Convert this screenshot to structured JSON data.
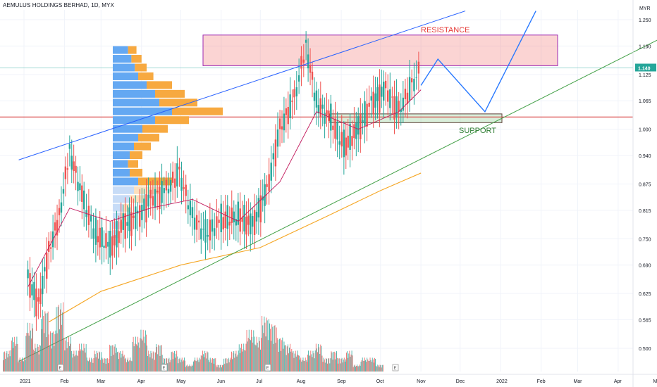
{
  "header": {
    "title": "AEMULUS HOLDINGS BERHAD, 1D, MYX"
  },
  "price_axis": {
    "currency": "MYR",
    "ticks": [
      "1.250",
      "1.190",
      "1.125",
      "1.065",
      "1.000",
      "0.940",
      "0.875",
      "0.815",
      "0.750",
      "0.690",
      "0.625",
      "0.565",
      "0.500"
    ],
    "last_price": "1.140",
    "last_price_color": "#26a69a"
  },
  "time_axis": {
    "ticks": [
      "2021",
      "Feb",
      "Mar",
      "Apr",
      "May",
      "Jun",
      "Jul",
      "Aug",
      "Sep",
      "Oct",
      "Nov",
      "Dec",
      "2022",
      "Feb",
      "Mar",
      "Apr",
      "May"
    ]
  },
  "annotations": {
    "resistance_label": "RESISTANCE",
    "support_label": "SUPPORT",
    "resistance_zone": [
      1.145,
      1.215
    ],
    "support_zone": [
      1.015,
      1.035
    ],
    "horizontal_line": 1.028,
    "resistance_color": "#e53935",
    "support_color": "#2e7d32",
    "earnings_marker": "E"
  },
  "chart_data": {
    "type": "candlestick",
    "symbol": "AEMULUS HOLDINGS BERHAD",
    "interval": "1D",
    "exchange": "MYX",
    "ylim": [
      0.44,
      1.27
    ],
    "price_path": [
      {
        "x": "2021-01-04",
        "y": 0.66
      },
      {
        "x": "2021-01-12",
        "y": 0.6
      },
      {
        "x": "2021-01-20",
        "y": 0.72
      },
      {
        "x": "2021-01-28",
        "y": 0.8
      },
      {
        "x": "2021-02-05",
        "y": 0.95
      },
      {
        "x": "2021-02-16",
        "y": 0.83
      },
      {
        "x": "2021-02-25",
        "y": 0.76
      },
      {
        "x": "2021-03-08",
        "y": 0.73
      },
      {
        "x": "2021-03-18",
        "y": 0.78
      },
      {
        "x": "2021-03-29",
        "y": 0.8
      },
      {
        "x": "2021-04-08",
        "y": 0.84
      },
      {
        "x": "2021-04-20",
        "y": 0.86
      },
      {
        "x": "2021-04-30",
        "y": 0.9
      },
      {
        "x": "2021-05-10",
        "y": 0.8
      },
      {
        "x": "2021-05-20",
        "y": 0.76
      },
      {
        "x": "2021-06-01",
        "y": 0.79
      },
      {
        "x": "2021-06-14",
        "y": 0.8
      },
      {
        "x": "2021-06-25",
        "y": 0.78
      },
      {
        "x": "2021-07-06",
        "y": 0.86
      },
      {
        "x": "2021-07-16",
        "y": 1.0
      },
      {
        "x": "2021-07-27",
        "y": 1.07
      },
      {
        "x": "2021-08-05",
        "y": 1.19
      },
      {
        "x": "2021-08-13",
        "y": 1.06
      },
      {
        "x": "2021-08-24",
        "y": 1.02
      },
      {
        "x": "2021-09-03",
        "y": 0.96
      },
      {
        "x": "2021-09-14",
        "y": 1.0
      },
      {
        "x": "2021-09-24",
        "y": 1.06
      },
      {
        "x": "2021-10-05",
        "y": 1.09
      },
      {
        "x": "2021-10-15",
        "y": 1.04
      },
      {
        "x": "2021-10-25",
        "y": 1.1
      },
      {
        "x": "2021-11-01",
        "y": 1.14
      }
    ],
    "moving_average_short": [
      {
        "x": "2021-01-04",
        "y": 0.64
      },
      {
        "x": "2021-02-05",
        "y": 0.82
      },
      {
        "x": "2021-03-08",
        "y": 0.79
      },
      {
        "x": "2021-04-08",
        "y": 0.82
      },
      {
        "x": "2021-05-10",
        "y": 0.84
      },
      {
        "x": "2021-06-14",
        "y": 0.79
      },
      {
        "x": "2021-07-16",
        "y": 0.88
      },
      {
        "x": "2021-08-13",
        "y": 1.04
      },
      {
        "x": "2021-09-14",
        "y": 1.0
      },
      {
        "x": "2021-10-15",
        "y": 1.04
      },
      {
        "x": "2021-11-01",
        "y": 1.09
      }
    ],
    "moving_average_long": [
      {
        "x": "2021-01-20",
        "y": 0.56
      },
      {
        "x": "2021-03-01",
        "y": 0.63
      },
      {
        "x": "2021-05-01",
        "y": 0.69
      },
      {
        "x": "2021-07-01",
        "y": 0.73
      },
      {
        "x": "2021-08-20",
        "y": 0.8
      },
      {
        "x": "2021-10-01",
        "y": 0.86
      },
      {
        "x": "2021-11-01",
        "y": 0.9
      }
    ],
    "projection_path": [
      {
        "x": "2021-11-01",
        "y": 1.1
      },
      {
        "x": "2021-11-14",
        "y": 1.16
      },
      {
        "x": "2021-12-20",
        "y": 1.04
      },
      {
        "x": "2022-01-28",
        "y": 1.27
      }
    ],
    "upper_trendline": [
      {
        "x": "2020-12-28",
        "y": 0.93
      },
      {
        "x": "2021-12-05",
        "y": 1.27
      }
    ],
    "lower_trendline": [
      {
        "x": "2020-12-28",
        "y": 0.47
      },
      {
        "x": "2022-06-01",
        "y": 1.25
      }
    ],
    "volume_relative": [
      0.3,
      0.5,
      0.2,
      0.7,
      0.4,
      0.9,
      0.6,
      1.0,
      0.5,
      0.3,
      0.4,
      0.2,
      0.3,
      0.2,
      0.4,
      0.3,
      0.2,
      0.5,
      0.6,
      0.3,
      0.4,
      0.2,
      0.3,
      0.2,
      0.1,
      0.2,
      0.3,
      0.2,
      0.1,
      0.2,
      0.3,
      0.4,
      0.6,
      0.5,
      0.8,
      0.7,
      0.5,
      0.4,
      0.3,
      0.2,
      0.3,
      0.4,
      0.2,
      0.3,
      0.2,
      0.3,
      0.1,
      0.2,
      0.2,
      0.1
    ],
    "volume_profile": [
      {
        "price": 1.18,
        "buy": 0.18,
        "sell": 0.1
      },
      {
        "price": 1.16,
        "buy": 0.22,
        "sell": 0.12
      },
      {
        "price": 1.14,
        "buy": 0.26,
        "sell": 0.14
      },
      {
        "price": 1.12,
        "buy": 0.3,
        "sell": 0.18
      },
      {
        "price": 1.1,
        "buy": 0.4,
        "sell": 0.3
      },
      {
        "price": 1.08,
        "buy": 0.5,
        "sell": 0.35
      },
      {
        "price": 1.06,
        "buy": 0.55,
        "sell": 0.45
      },
      {
        "price": 1.04,
        "buy": 0.7,
        "sell": 0.6
      },
      {
        "price": 1.02,
        "buy": 0.5,
        "sell": 0.4
      },
      {
        "price": 1.0,
        "buy": 0.35,
        "sell": 0.3
      },
      {
        "price": 0.98,
        "buy": 0.3,
        "sell": 0.25
      },
      {
        "price": 0.96,
        "buy": 0.25,
        "sell": 0.2
      },
      {
        "price": 0.94,
        "buy": 0.2,
        "sell": 0.15
      },
      {
        "price": 0.92,
        "buy": 0.18,
        "sell": 0.12
      },
      {
        "price": 0.9,
        "buy": 0.2,
        "sell": 0.15
      },
      {
        "price": 0.88,
        "buy": 0.3,
        "sell": 0.4
      },
      {
        "price": 0.86,
        "buy": 0.25,
        "sell": 0.3
      },
      {
        "price": 0.84,
        "buy": 0.2,
        "sell": 0.18
      },
      {
        "price": 0.82,
        "buy": 0.12,
        "sell": 0.1
      },
      {
        "price": 0.8,
        "buy": 0.1,
        "sell": 0.06
      },
      {
        "price": 0.78,
        "buy": 0.08,
        "sell": 0.04
      },
      {
        "price": 0.76,
        "buy": 0.05,
        "sell": 0.02
      }
    ],
    "grid": true
  }
}
